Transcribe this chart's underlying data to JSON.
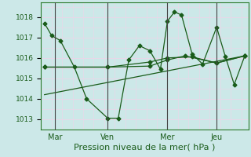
{
  "bg_color": "#cce8e8",
  "grid_color": "#e8d8e8",
  "line_color": "#1a5c1a",
  "marker_color": "#1a5c1a",
  "xlabel": "Pression niveau de la mer( hPa )",
  "xlabel_color": "#1a5c1a",
  "yticks": [
    1013,
    1014,
    1015,
    1016,
    1017,
    1018
  ],
  "ylim": [
    1012.5,
    1018.7
  ],
  "xtick_labels": [
    "Mar",
    "Ven",
    "Mer",
    "Jeu"
  ],
  "xtick_positions": [
    8,
    38,
    72,
    100
  ],
  "xlim": [
    0,
    118
  ],
  "vlines": [
    8,
    38,
    72,
    100
  ],
  "series1_x": [
    2,
    6,
    11,
    19,
    26,
    38,
    44,
    50,
    56,
    62,
    68,
    72,
    76,
    80,
    86,
    92,
    100,
    105,
    110,
    116
  ],
  "series1_y": [
    1017.7,
    1017.1,
    1016.85,
    1015.55,
    1014.0,
    1013.05,
    1013.05,
    1015.9,
    1016.6,
    1016.35,
    1015.45,
    1017.8,
    1018.25,
    1018.1,
    1016.2,
    1015.7,
    1017.5,
    1016.05,
    1014.7,
    1016.1
  ],
  "series2_x": [
    2,
    38,
    62,
    72,
    82,
    100,
    116
  ],
  "series2_y": [
    1015.55,
    1015.55,
    1015.6,
    1015.9,
    1016.1,
    1015.75,
    1016.1
  ],
  "series3_x": [
    2,
    116
  ],
  "series3_y": [
    1014.2,
    1016.1
  ],
  "series4_x": [
    2,
    38,
    62,
    72,
    86,
    100,
    116
  ],
  "series4_y": [
    1015.55,
    1015.55,
    1015.8,
    1016.0,
    1016.05,
    1015.75,
    1016.1
  ],
  "ytick_fontsize": 6.5,
  "xtick_fontsize": 7,
  "xlabel_fontsize": 8
}
